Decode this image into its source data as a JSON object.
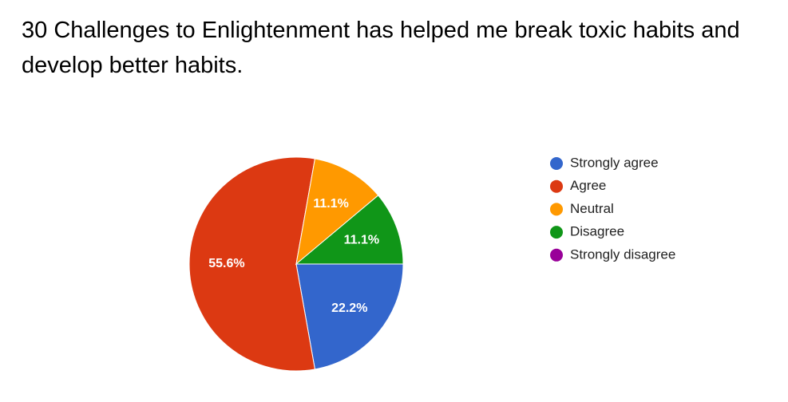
{
  "chart_data": {
    "type": "pie",
    "title": "30 Challenges to Enlightenment has helped me break toxic habits and develop better habits.",
    "categories": [
      "Strongly agree",
      "Agree",
      "Neutral",
      "Disagree",
      "Strongly disagree"
    ],
    "values": [
      22.2,
      55.6,
      11.1,
      11.1,
      0
    ],
    "value_labels": [
      "22.2%",
      "55.6%",
      "11.1%",
      "11.1%",
      null
    ],
    "colors": [
      "#3366cc",
      "#dc3912",
      "#ff9900",
      "#109618",
      "#990099"
    ],
    "legend": "right"
  }
}
